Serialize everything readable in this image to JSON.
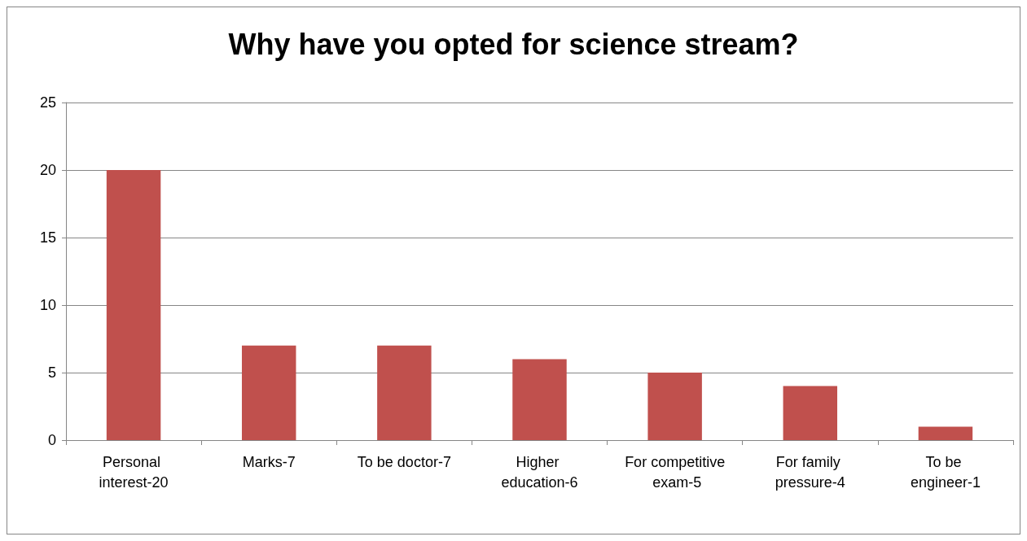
{
  "chart_data": {
    "type": "bar",
    "title": "Why have you opted for science stream?",
    "categories": [
      "Personal interest-20",
      "Marks-7",
      "To be doctor-7",
      "Higher education-6",
      "For competitive exam-5",
      "For family pressure-4",
      "To be engineer-1"
    ],
    "values": [
      20,
      7,
      7,
      6,
      5,
      4,
      1
    ],
    "color": "#c0504d",
    "ylim": [
      0,
      25
    ],
    "yticks": [
      0,
      5,
      10,
      15,
      20,
      25
    ],
    "grid": "y"
  }
}
